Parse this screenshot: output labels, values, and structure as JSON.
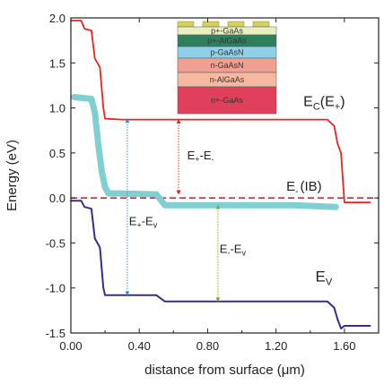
{
  "chart_data": {
    "type": "line",
    "xlabel": "distance from surface (μm)",
    "ylabel": "Energy (eV)",
    "xlim": [
      0.0,
      1.8
    ],
    "ylim": [
      -1.5,
      2.0
    ],
    "x_ticks": [
      "0.00",
      "0.40",
      "0.80",
      "1.20",
      "1.60"
    ],
    "x_tick_values": [
      0.0,
      0.4,
      0.8,
      1.2,
      1.6
    ],
    "y_ticks": [
      "2.0",
      "1.5",
      "1.0",
      "0.5",
      "0.0",
      "-0.5",
      "-1.0",
      "-1.5"
    ],
    "y_tick_values": [
      2.0,
      1.5,
      1.0,
      0.5,
      0.0,
      -0.5,
      -1.0,
      -1.5
    ],
    "series": [
      {
        "name": "E_C(E_+)",
        "color": "#e8251f",
        "x": [
          0.0,
          0.06,
          0.08,
          0.12,
          0.14,
          0.17,
          0.19,
          0.2,
          0.3,
          0.5,
          0.6,
          1.5,
          1.54,
          1.56,
          1.58,
          1.6,
          1.75
        ],
        "y": [
          1.97,
          1.97,
          1.88,
          1.86,
          1.55,
          1.45,
          1.0,
          0.88,
          0.87,
          0.87,
          0.87,
          0.87,
          0.8,
          0.6,
          0.5,
          -0.05,
          -0.05
        ]
      },
      {
        "name": "E_-(IB)",
        "color": "#7fcfd3",
        "x": [
          0.02,
          0.12,
          0.14,
          0.16,
          0.18,
          0.2,
          0.22,
          0.28,
          0.5,
          0.55,
          1.3,
          1.55
        ],
        "y": [
          1.12,
          1.1,
          0.95,
          0.6,
          0.3,
          0.12,
          0.05,
          0.05,
          0.04,
          -0.08,
          -0.08,
          -0.1
        ]
      },
      {
        "name": "E_V",
        "color": "#3a2b8f",
        "x": [
          0.0,
          0.06,
          0.08,
          0.12,
          0.14,
          0.17,
          0.19,
          0.2,
          0.5,
          0.55,
          1.5,
          1.54,
          1.56,
          1.58,
          1.6,
          1.75
        ],
        "y": [
          -0.03,
          -0.03,
          -0.1,
          -0.12,
          -0.45,
          -0.55,
          -1.0,
          -1.08,
          -1.08,
          -1.15,
          -1.15,
          -1.22,
          -1.35,
          -1.45,
          -1.42,
          -1.42
        ]
      }
    ],
    "fermi_level": {
      "y": 0.0,
      "color": "#d9252b"
    },
    "arrows": [
      {
        "name": "E+-Ev",
        "x": 0.33,
        "y_from": 0.88,
        "y_to": -1.08,
        "color": "#2d8fd6"
      },
      {
        "name": "E+-E-",
        "x": 0.63,
        "y_from": 0.87,
        "y_to": 0.04,
        "color": "#d9252b"
      },
      {
        "name": "E--Ev",
        "x": 0.86,
        "y_from": -0.08,
        "y_to": -1.15,
        "color": "#8aa52a"
      }
    ],
    "labels": {
      "ec": "E",
      "ec_sub": "C",
      "ec_paren": "(E",
      "ec_paren_sub": "+",
      "ec_close": ")",
      "ib": "E",
      "ib_sub": "-",
      "ib_tail": "(IB)",
      "ev": "E",
      "ev_sub": "V",
      "a_plus_minus": "E",
      "a_plus_minus_s1": "+",
      "a_plus_minus_mid": "-E",
      "a_plus_minus_s2": "-",
      "a_plus_v": "E",
      "a_plus_v_s1": "+",
      "a_plus_v_mid": "-E",
      "a_plus_v_s2": "v",
      "a_minus_v": "E",
      "a_minus_v_s1": "-",
      "a_minus_v_mid": "-E",
      "a_minus_v_s2": "v"
    },
    "grid": false,
    "legend": "none"
  },
  "inset": {
    "layers": [
      {
        "label": "p+-GaAs",
        "color": "#e8f0c0"
      },
      {
        "label": "p+-AlGaAs",
        "color": "#2f7f5e"
      },
      {
        "label": "p-GaAsN",
        "color": "#8fd0e8"
      },
      {
        "label": "n-GaAsN",
        "color": "#f0a090"
      },
      {
        "label": "n-AlGaAs",
        "color": "#f5b8a0"
      },
      {
        "label": "n+-GaAs",
        "color": "#e0405a"
      }
    ],
    "contact_color": "#d7d060"
  }
}
